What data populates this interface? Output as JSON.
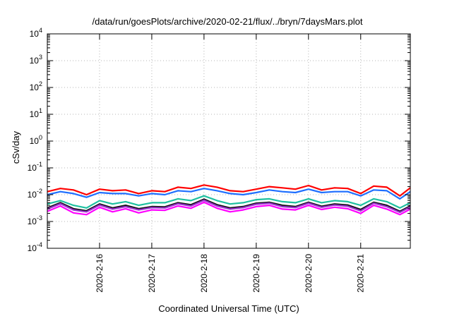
{
  "chart_data": {
    "type": "line",
    "title": "/data/run/goesPlots/archive/2020-02-21/flux/../bryn/7daysMars.plot",
    "xlabel": "Coordinated Universal Time (UTC)",
    "ylabel": "cSv/day",
    "yscale": "log",
    "ylim": [
      0.0001,
      10000
    ],
    "xlim": [
      15.0,
      21.95
    ],
    "grid": true,
    "y_ticks": [
      {
        "base": "10",
        "exp": "-4"
      },
      {
        "base": "10",
        "exp": "-3"
      },
      {
        "base": "10",
        "exp": "-2"
      },
      {
        "base": "10",
        "exp": "-1"
      },
      {
        "base": "10",
        "exp": "0"
      },
      {
        "base": "10",
        "exp": "1"
      },
      {
        "base": "10",
        "exp": "2"
      },
      {
        "base": "10",
        "exp": "3"
      },
      {
        "base": "10",
        "exp": "4"
      }
    ],
    "x_ticks": [
      "2020-2-16",
      "2020-2-17",
      "2020-2-18",
      "2020-2-19",
      "2020-2-20",
      "2020-2-21"
    ],
    "x_tick_values": [
      16,
      17,
      18,
      19,
      20,
      21
    ],
    "x": [
      15.0,
      15.25,
      15.5,
      15.75,
      16.0,
      16.25,
      16.5,
      16.75,
      17.0,
      17.25,
      17.5,
      17.75,
      18.0,
      18.25,
      18.5,
      18.75,
      19.0,
      19.25,
      19.5,
      19.75,
      20.0,
      20.25,
      20.5,
      20.75,
      21.0,
      21.25,
      21.5,
      21.75,
      21.95
    ],
    "series": [
      {
        "color": "#ff0000",
        "values": [
          0.013,
          0.017,
          0.015,
          0.01,
          0.016,
          0.014,
          0.015,
          0.011,
          0.014,
          0.013,
          0.019,
          0.017,
          0.023,
          0.019,
          0.014,
          0.013,
          0.016,
          0.02,
          0.018,
          0.016,
          0.022,
          0.015,
          0.018,
          0.017,
          0.011,
          0.021,
          0.019,
          0.009,
          0.018
        ]
      },
      {
        "color": "#1f6fff",
        "values": [
          0.01,
          0.013,
          0.011,
          0.008,
          0.012,
          0.011,
          0.011,
          0.009,
          0.011,
          0.01,
          0.014,
          0.013,
          0.017,
          0.014,
          0.011,
          0.01,
          0.012,
          0.015,
          0.013,
          0.012,
          0.016,
          0.012,
          0.013,
          0.013,
          0.009,
          0.015,
          0.014,
          0.007,
          0.013
        ]
      },
      {
        "color": "#1fc0a0",
        "values": [
          0.0045,
          0.006,
          0.004,
          0.0032,
          0.006,
          0.0045,
          0.0055,
          0.004,
          0.005,
          0.005,
          0.007,
          0.006,
          0.009,
          0.006,
          0.0045,
          0.005,
          0.0065,
          0.007,
          0.0055,
          0.005,
          0.007,
          0.005,
          0.006,
          0.0055,
          0.004,
          0.007,
          0.0055,
          0.0032,
          0.005
        ]
      },
      {
        "color": "#111111",
        "values": [
          0.0032,
          0.005,
          0.003,
          0.0025,
          0.0045,
          0.0032,
          0.004,
          0.003,
          0.0036,
          0.0035,
          0.005,
          0.0042,
          0.0068,
          0.0042,
          0.0032,
          0.0036,
          0.0048,
          0.0052,
          0.004,
          0.0036,
          0.0052,
          0.0037,
          0.0045,
          0.0041,
          0.0028,
          0.0052,
          0.004,
          0.0024,
          0.0038
        ]
      },
      {
        "color": "#9932cc",
        "values": [
          0.0029,
          0.0046,
          0.0027,
          0.0023,
          0.0041,
          0.0029,
          0.0036,
          0.0027,
          0.0033,
          0.0032,
          0.0046,
          0.0038,
          0.0062,
          0.0038,
          0.0029,
          0.0033,
          0.0044,
          0.0048,
          0.0036,
          0.0033,
          0.0048,
          0.0034,
          0.0041,
          0.0037,
          0.0025,
          0.0048,
          0.0036,
          0.0022,
          0.0035
        ]
      },
      {
        "color": "#ff00ff",
        "values": [
          0.0024,
          0.0038,
          0.0021,
          0.0018,
          0.0034,
          0.0023,
          0.003,
          0.0021,
          0.0027,
          0.0026,
          0.0038,
          0.0031,
          0.0052,
          0.0031,
          0.0023,
          0.0027,
          0.0036,
          0.004,
          0.0029,
          0.0027,
          0.004,
          0.0028,
          0.0034,
          0.003,
          0.002,
          0.004,
          0.0029,
          0.0018,
          0.0029
        ]
      }
    ]
  }
}
